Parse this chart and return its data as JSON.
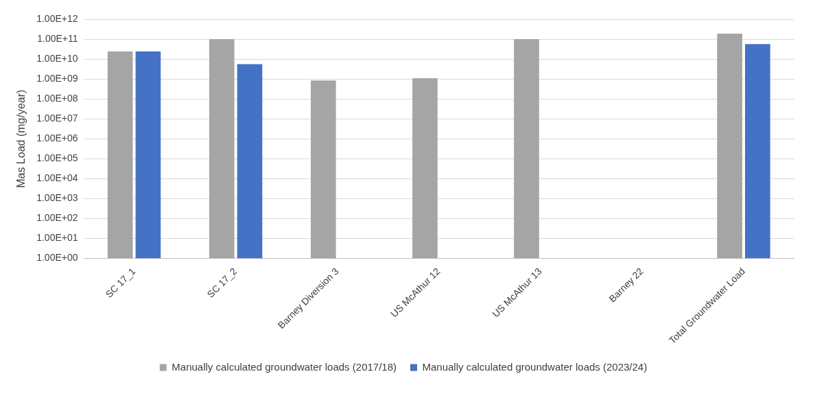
{
  "chart_data": {
    "type": "bar",
    "ylabel": "Mas Load (mg/year)",
    "categories": [
      "SC 17_1",
      "SC 17_2",
      "Barney Diversion 3",
      "US McAthur 12",
      "US McAthur 13",
      "Barney 22",
      "Total Groundwater Load"
    ],
    "series": [
      {
        "name": "Manually calculated groundwater loads (2017/18)",
        "color": "#a5a5a5",
        "values": [
          24000000000.0,
          100000000000.0,
          850000000.0,
          1100000000.0,
          100000000000.0,
          null,
          190000000000.0
        ]
      },
      {
        "name": "Manually calculated groundwater loads (2023/24)",
        "color": "#4472c4",
        "values": [
          24000000000.0,
          5600000000.0,
          null,
          null,
          null,
          null,
          56000000000.0
        ]
      }
    ],
    "log": "y",
    "ylim": [
      1,
      1000000000000.0
    ],
    "yticks": [
      {
        "value": 1,
        "label": "1.00E+00"
      },
      {
        "value": 10,
        "label": "1.00E+01"
      },
      {
        "value": 100,
        "label": "1.00E+02"
      },
      {
        "value": 1000,
        "label": "1.00E+03"
      },
      {
        "value": 10000.0,
        "label": "1.00E+04"
      },
      {
        "value": 100000.0,
        "label": "1.00E+05"
      },
      {
        "value": 1000000.0,
        "label": "1.00E+06"
      },
      {
        "value": 10000000.0,
        "label": "1.00E+07"
      },
      {
        "value": 100000000.0,
        "label": "1.00E+08"
      },
      {
        "value": 1000000000.0,
        "label": "1.00E+09"
      },
      {
        "value": 10000000000.0,
        "label": "1.00E+10"
      },
      {
        "value": 100000000000.0,
        "label": "1.00E+11"
      },
      {
        "value": 1000000000000.0,
        "label": "1.00E+12"
      }
    ],
    "grid": "y",
    "legend": "bottom"
  }
}
